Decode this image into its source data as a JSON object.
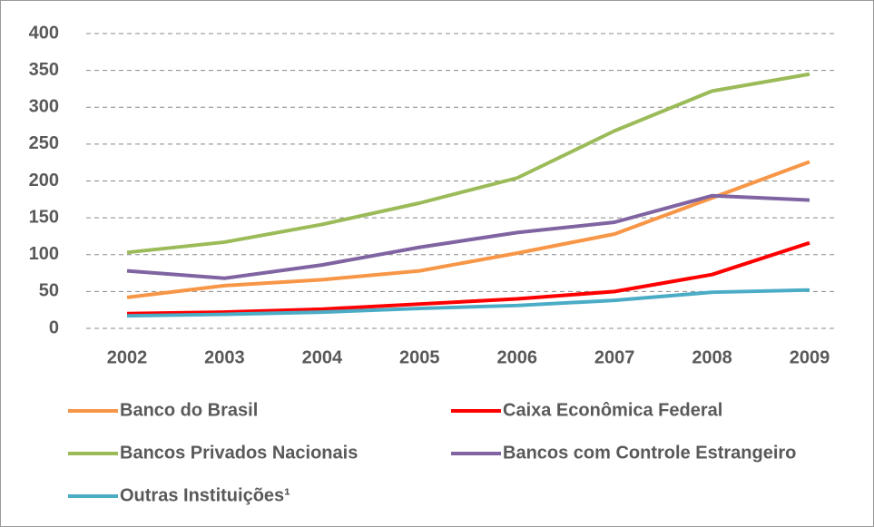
{
  "chart_data": {
    "type": "line",
    "categories": [
      "2002",
      "2003",
      "2004",
      "2005",
      "2006",
      "2007",
      "2008",
      "2009"
    ],
    "series": [
      {
        "name": "Banco do Brasil",
        "color": "#f79646",
        "values": [
          42,
          58,
          66,
          78,
          102,
          128,
          177,
          226
        ]
      },
      {
        "name": "Caixa Econômica Federal",
        "color": "#ff0000",
        "values": [
          20,
          22,
          26,
          33,
          40,
          50,
          73,
          116
        ]
      },
      {
        "name": "Bancos Privados Nacionais",
        "color": "#9bbb59",
        "values": [
          103,
          117,
          141,
          170,
          204,
          268,
          322,
          345
        ]
      },
      {
        "name": "Bancos com Controle Estrangeiro",
        "color": "#8064a2",
        "values": [
          78,
          68,
          86,
          110,
          130,
          144,
          180,
          174
        ]
      },
      {
        "name": "Outras Instituições¹",
        "color": "#4bacc6",
        "values": [
          17,
          19,
          22,
          27,
          31,
          38,
          49,
          52
        ]
      }
    ],
    "ylim": [
      0,
      400
    ],
    "yticks": [
      0,
      50,
      100,
      150,
      200,
      250,
      300,
      350,
      400
    ],
    "grid": true
  }
}
